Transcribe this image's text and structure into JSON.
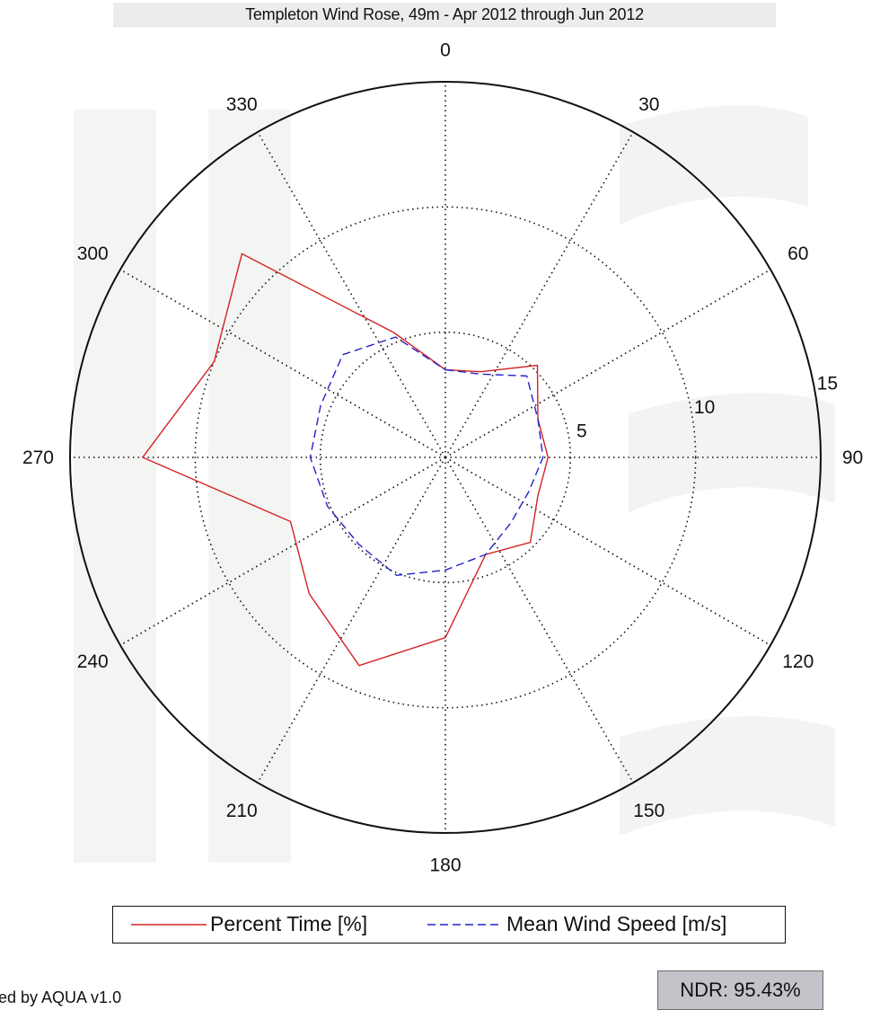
{
  "chart_data": {
    "type": "polar-line",
    "title": "Templeton Wind Rose, 49m - Apr 2012 through Jun 2012",
    "angle_ticks": [
      "0",
      "30",
      "60",
      "90",
      "120",
      "150",
      "180",
      "210",
      "240",
      "270",
      "300",
      "330"
    ],
    "radial_ticks": [
      "5",
      "10",
      "15"
    ],
    "r_max": 15,
    "directions_deg": [
      0,
      22.5,
      45,
      67.5,
      90,
      112.5,
      135,
      157.5,
      180,
      202.5,
      225,
      247.5,
      270,
      292.5,
      315,
      337.5
    ],
    "series": [
      {
        "name": "Percent Time [%]",
        "color": "#d42222",
        "style": "solid",
        "values": [
          3.5,
          3.7,
          5.2,
          4.0,
          4.1,
          4.0,
          4.8,
          4.2,
          7.2,
          9.0,
          7.7,
          6.7,
          12.1,
          10.0,
          11.5,
          5.4
        ]
      },
      {
        "name": "Mean Wind Speed [m/s]",
        "color": "#2222cc",
        "style": "dashed",
        "values": [
          3.5,
          3.6,
          4.6,
          4.0,
          3.9,
          3.6,
          3.7,
          4.2,
          4.5,
          5.1,
          4.9,
          5.1,
          5.4,
          5.4,
          5.8,
          5.2
        ]
      }
    ],
    "grid": true
  },
  "footer": {
    "credit": "ed by AQUA v1.0",
    "ndr": "NDR: 95.43%"
  }
}
